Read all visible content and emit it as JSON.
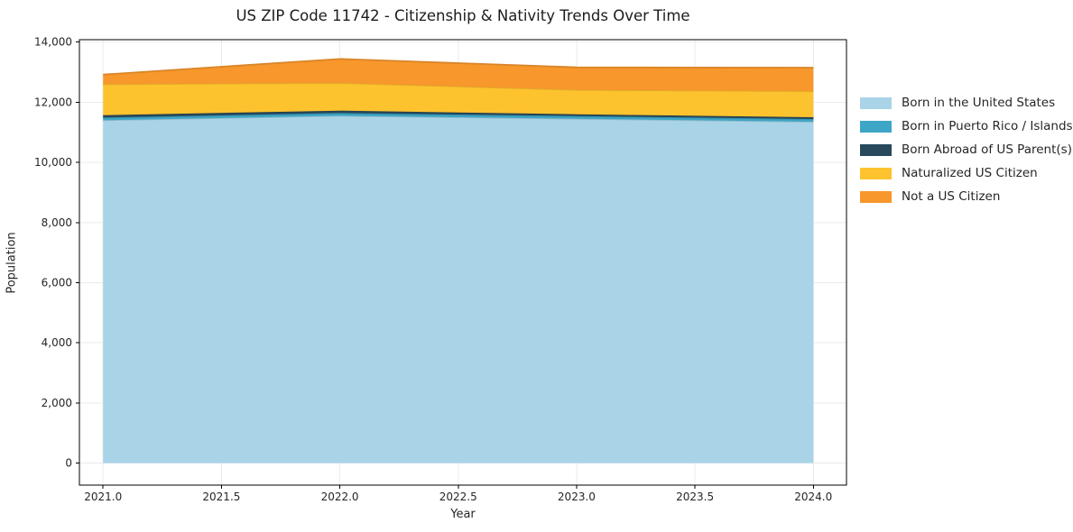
{
  "chart_data": {
    "type": "area",
    "stacked": true,
    "title": "US ZIP Code 11742 - Citizenship & Nativity Trends Over Time",
    "xlabel": "Year",
    "ylabel": "Population",
    "x": [
      2021,
      2022,
      2023,
      2024
    ],
    "series": [
      {
        "name": "Born in the United States",
        "color": "#A9D4E8",
        "values": [
          11400,
          11550,
          11450,
          11350
        ]
      },
      {
        "name": "Born in Puerto Rico / Islands",
        "color": "#3DA5C5",
        "values": [
          90,
          90,
          90,
          90
        ]
      },
      {
        "name": "Born Abroad of US Parent(s)",
        "color": "#28495C",
        "values": [
          80,
          80,
          60,
          60
        ]
      },
      {
        "name": "Naturalized US Citizen",
        "color": "#FDC32E",
        "values": [
          1030,
          920,
          810,
          870
        ]
      },
      {
        "name": "Not a US Citizen",
        "color": "#F7972C",
        "values": [
          320,
          800,
          750,
          780
        ]
      }
    ],
    "totals": [
      12920,
      13440,
      13160,
      13130
    ],
    "xlim": [
      2020.9,
      2024.14
    ],
    "ylim": [
      -730,
      14080
    ],
    "xticks": {
      "values": [
        2021.0,
        2021.5,
        2022.0,
        2022.5,
        2023.0,
        2023.5,
        2024.0
      ],
      "labels": [
        "2021.0",
        "2021.5",
        "2022.0",
        "2022.5",
        "2023.0",
        "2023.5",
        "2024.0"
      ]
    },
    "yticks": {
      "values": [
        0,
        2000,
        4000,
        6000,
        8000,
        10000,
        12000,
        14000
      ],
      "labels": [
        "0",
        "2,000",
        "4,000",
        "6,000",
        "8,000",
        "10,000",
        "12,000",
        "14,000"
      ]
    },
    "grid": true,
    "grid_color": "#ebebeb",
    "spine_color": "#000000",
    "background_color": "#ffffff",
    "legend_position": "right-outside"
  }
}
